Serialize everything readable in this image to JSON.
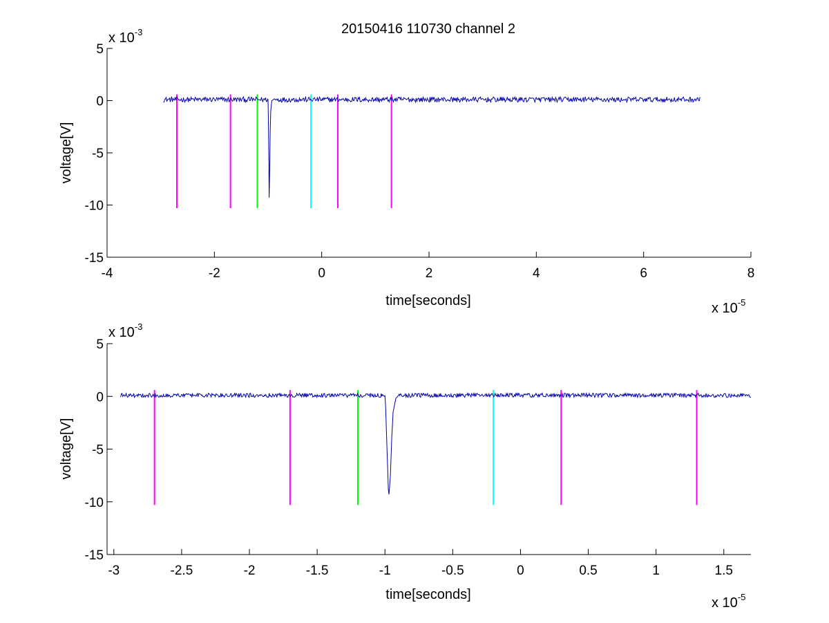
{
  "figure": {
    "title": "20150416 110730 channel 2"
  },
  "colors": {
    "trace": "#0000aa",
    "magenta": "#ff00ff",
    "green": "#00ff00",
    "cyan": "#00ffff",
    "axis": "#000000"
  },
  "chart_data": [
    {
      "type": "line",
      "xlabel": "time[seconds]",
      "ylabel": "voltage[V]",
      "x_exponent_base": "x 10",
      "x_exponent": "-5",
      "y_exponent_base": "x 10",
      "y_exponent": "-3",
      "xlim": [
        -4,
        8
      ],
      "ylim": [
        -15,
        5
      ],
      "xticks": [
        "-4",
        "-2",
        "0",
        "2",
        "4",
        "6",
        "8"
      ],
      "xtick_values": [
        -4,
        -2,
        0,
        2,
        4,
        6,
        8
      ],
      "yticks": [
        "5",
        "0",
        "-5",
        "-10",
        "-15"
      ],
      "ytick_values": [
        5,
        0,
        -5,
        -10,
        -15
      ],
      "series": [
        {
          "color": "#0000aa",
          "x_range": [
            -2.95,
            7.05
          ],
          "baseline": 0.1,
          "noise": 0.25,
          "pulse": [
            [
              -1.0,
              0.1
            ],
            [
              -0.995,
              -1.5
            ],
            [
              -0.985,
              -6.0
            ],
            [
              -0.98,
              -9.3
            ],
            [
              -0.97,
              -7.0
            ],
            [
              -0.96,
              -3.0
            ],
            [
              -0.95,
              -1.0
            ],
            [
              -0.93,
              0.0
            ],
            [
              -0.9,
              0.1
            ]
          ]
        }
      ],
      "markers": [
        {
          "x": -2.7,
          "color": "magenta"
        },
        {
          "x": -1.7,
          "color": "magenta"
        },
        {
          "x": -1.2,
          "color": "green"
        },
        {
          "x": -0.2,
          "color": "cyan"
        },
        {
          "x": 0.3,
          "color": "magenta"
        },
        {
          "x": 1.3,
          "color": "magenta"
        }
      ],
      "marker_range": [
        -10.3,
        0.6
      ]
    },
    {
      "type": "line",
      "xlabel": "time[seconds]",
      "ylabel": "voltage[V]",
      "x_exponent_base": "x 10",
      "x_exponent": "-5",
      "y_exponent_base": "x 10",
      "y_exponent": "-3",
      "xlim": [
        -3.05,
        1.7
      ],
      "ylim": [
        -15,
        5
      ],
      "xticks": [
        "-3",
        "-2.5",
        "-2",
        "-1.5",
        "-1",
        "-0.5",
        "0",
        "0.5",
        "1",
        "1.5"
      ],
      "xtick_values": [
        -3,
        -2.5,
        -2,
        -1.5,
        -1,
        -0.5,
        0,
        0.5,
        1,
        1.5
      ],
      "yticks": [
        "5",
        "0",
        "-5",
        "-10",
        "-15"
      ],
      "ytick_values": [
        5,
        0,
        -5,
        -10,
        -15
      ],
      "series": [
        {
          "color": "#0000aa",
          "x_range": [
            -2.95,
            1.7
          ],
          "baseline": 0.1,
          "noise": 0.2,
          "pulse": [
            [
              -1.0,
              0.1
            ],
            [
              -0.995,
              -1.0
            ],
            [
              -0.985,
              -5.0
            ],
            [
              -0.975,
              -8.8
            ],
            [
              -0.97,
              -9.3
            ],
            [
              -0.96,
              -7.5
            ],
            [
              -0.95,
              -4.0
            ],
            [
              -0.94,
              -1.5
            ],
            [
              -0.92,
              -0.2
            ],
            [
              -0.9,
              0.1
            ]
          ]
        }
      ],
      "markers": [
        {
          "x": -2.7,
          "color": "magenta"
        },
        {
          "x": -1.7,
          "color": "magenta"
        },
        {
          "x": -1.2,
          "color": "green"
        },
        {
          "x": -0.2,
          "color": "cyan"
        },
        {
          "x": 0.3,
          "color": "magenta"
        },
        {
          "x": 1.3,
          "color": "magenta"
        }
      ],
      "marker_range": [
        -10.3,
        0.6
      ]
    }
  ]
}
